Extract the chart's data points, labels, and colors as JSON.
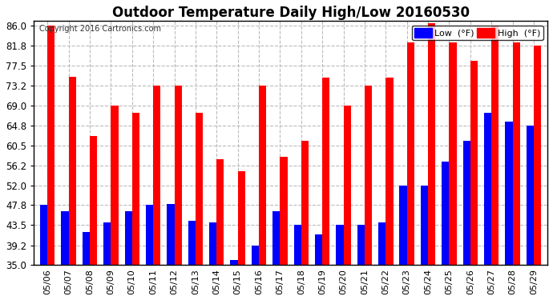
{
  "title": "Outdoor Temperature Daily High/Low 20160530",
  "copyright": "Copyright 2016 Cartronics.com",
  "dates": [
    "05/06",
    "05/07",
    "05/08",
    "05/09",
    "05/10",
    "05/11",
    "05/12",
    "05/13",
    "05/14",
    "05/15",
    "05/16",
    "05/17",
    "05/18",
    "05/19",
    "05/20",
    "05/21",
    "05/22",
    "05/23",
    "05/24",
    "05/25",
    "05/26",
    "05/27",
    "05/28",
    "05/29"
  ],
  "highs": [
    86.0,
    75.2,
    62.5,
    69.0,
    67.5,
    73.2,
    73.2,
    67.5,
    57.5,
    55.0,
    73.2,
    58.0,
    61.5,
    75.0,
    69.0,
    73.2,
    75.0,
    82.4,
    86.5,
    82.4,
    78.5,
    86.0,
    82.4,
    81.8
  ],
  "lows": [
    47.8,
    46.5,
    42.0,
    44.0,
    46.5,
    47.8,
    48.0,
    44.5,
    44.0,
    36.0,
    39.2,
    46.5,
    43.5,
    41.5,
    43.5,
    43.5,
    44.0,
    52.0,
    52.0,
    57.0,
    61.5,
    67.5,
    65.5,
    64.8
  ],
  "low_color": "#0000ff",
  "high_color": "#ff0000",
  "ymin": 35.0,
  "ymax": 87.0,
  "yticks": [
    35.0,
    39.2,
    43.5,
    47.8,
    52.0,
    56.2,
    60.5,
    64.8,
    69.0,
    73.2,
    77.5,
    81.8,
    86.0
  ],
  "bg_color": "#ffffff",
  "grid_color": "#bbbbbb",
  "title_fontsize": 12,
  "label_fontsize": 8.5
}
